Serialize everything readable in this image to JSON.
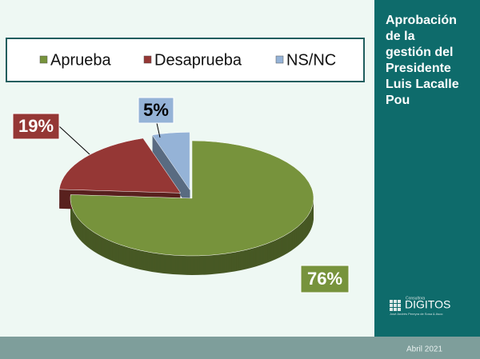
{
  "chart_data": {
    "type": "pie",
    "title": "Aprobación de la gestión del Presidente Luis Lacalle Pou",
    "categories": [
      "Aprueba",
      "Desaprueba",
      "NS/NC"
    ],
    "values": [
      76,
      19,
      5
    ],
    "value_labels": [
      "76%",
      "19%",
      "5%"
    ],
    "colors": [
      "#77933c",
      "#953735",
      "#95b3d7"
    ],
    "legend": "top"
  },
  "footer": {
    "date": "Abril 2021"
  },
  "logo": {
    "small": "Consultora",
    "name": "DIGITOS",
    "sub": "José Andrés Pereyra de Sosa & Asoc"
  }
}
